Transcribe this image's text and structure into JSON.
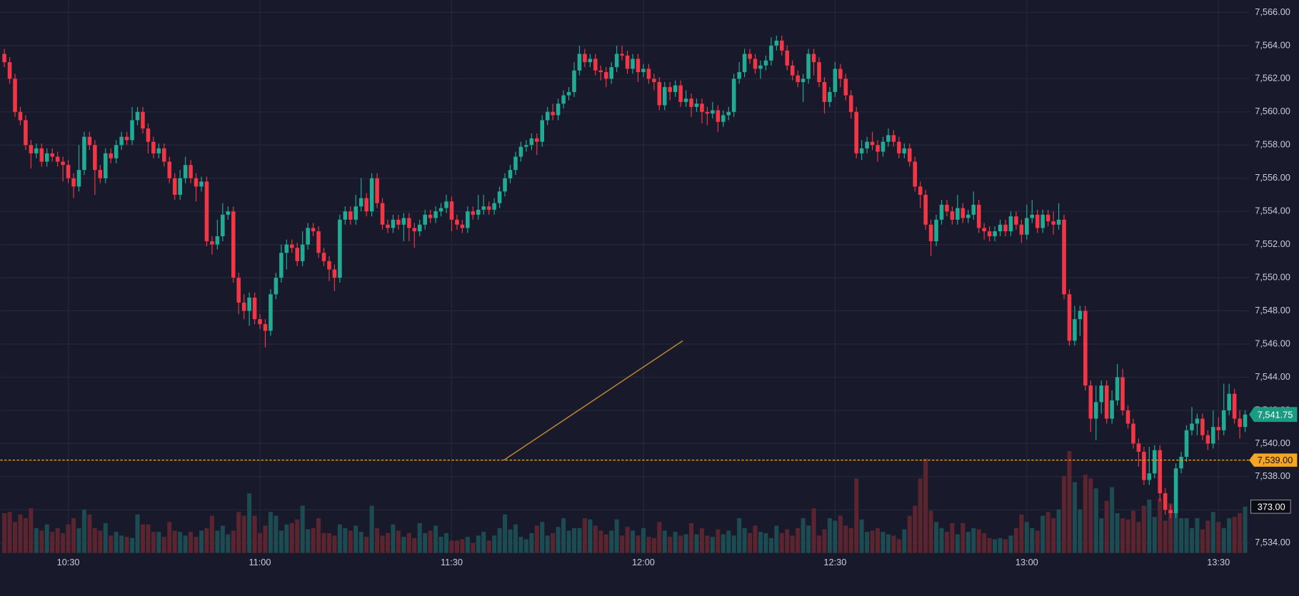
{
  "chart_data": {
    "type": "candlestick",
    "up_color": "#22ab94",
    "down_color": "#f23645",
    "volume_up_color": "#1d4b52",
    "volume_down_color": "#5b2530",
    "grid": true,
    "xlim": [
      -0.78,
      233.75
    ],
    "ylim": [
      7533.4,
      7566.75
    ],
    "vlim": [
      0,
      1000
    ],
    "xticks": [
      {
        "value": 12,
        "label": "10:30"
      },
      {
        "value": 48,
        "label": "11:00"
      },
      {
        "value": 84,
        "label": "11:30"
      },
      {
        "value": 120,
        "label": "12:00"
      },
      {
        "value": 156,
        "label": "12:30"
      },
      {
        "value": 192,
        "label": "13:00"
      },
      {
        "value": 228,
        "label": "13:30"
      }
    ],
    "yticks": [
      {
        "value": 7534,
        "label": "7,534.00"
      },
      {
        "value": 7536,
        "label": "7,536.00"
      },
      {
        "value": 7538,
        "label": "7,538.00"
      },
      {
        "value": 7540,
        "label": "7,540.00"
      },
      {
        "value": 7542,
        "label": "7,542.00"
      },
      {
        "value": 7544,
        "label": "7,544.00"
      },
      {
        "value": 7546,
        "label": "7,546.00"
      },
      {
        "value": 7548,
        "label": "7,548.00"
      },
      {
        "value": 7550,
        "label": "7,550.00"
      },
      {
        "value": 7552,
        "label": "7,552.00"
      },
      {
        "value": 7554,
        "label": "7,554.00"
      },
      {
        "value": 7556,
        "label": "7,556.00"
      },
      {
        "value": 7558,
        "label": "7,558.00"
      },
      {
        "value": 7560,
        "label": "7,560.00"
      },
      {
        "value": 7562,
        "label": "7,562.00"
      },
      {
        "value": 7564,
        "label": "7,564.00"
      },
      {
        "value": 7566,
        "label": "7,566.00"
      }
    ],
    "open": [
      7563.5,
      7563,
      7562,
      7560,
      7559.5,
      7558,
      7557.5,
      7557.8,
      7557,
      7557.5,
      7557.3,
      7557,
      7556.8,
      7556,
      7555.5,
      7556.5,
      7558.5,
      7558,
      7556.5,
      7556,
      7557.5,
      7557.2,
      7558,
      7558.5,
      7558.3,
      7559.5,
      7560,
      7559,
      7558.2,
      7557.5,
      7557.8,
      7557,
      7556,
      7555,
      7556,
      7556.8,
      7556,
      7555.5,
      7555.8,
      7552.2,
      7552,
      7552.5,
      7553.8,
      7554,
      7550,
      7548.5,
      7548,
      7548.8,
      7547.5,
      7547.2,
      7546.8,
      7549,
      7550,
      7551.5,
      7552,
      7551.8,
      7551,
      7552,
      7553,
      7552.8,
      7551.5,
      7551,
      7550.5,
      7550,
      7553.5,
      7554,
      7553.5,
      7554.3,
      7554.8,
      7554,
      7556,
      7554.5,
      7553.2,
      7553,
      7553.5,
      7553.2,
      7553.6,
      7553,
      7552.8,
      7553.2,
      7553.8,
      7553.6,
      7554,
      7554.2,
      7554.6,
      7553.5,
      7553.2,
      7553,
      7554,
      7553.8,
      7554.1,
      7554.3,
      7554.1,
      7554.5,
      7555.2,
      7556,
      7556.5,
      7557.3,
      7557.9,
      7558,
      7558.4,
      7558.2,
      7559.5,
      7560,
      7559.8,
      7560.5,
      7561,
      7561.2,
      7562.5,
      7563.5,
      7563,
      7563.2,
      7562.5,
      7562.4,
      7562,
      7562.7,
      7563.5,
      7563.4,
      7562.6,
      7563.2,
      7562.4,
      7562.6,
      7562,
      7561.8,
      7560.4,
      7561.5,
      7561.2,
      7561.6,
      7560.6,
      7560.8,
      7560.3,
      7560.5,
      7560,
      7559.9,
      7560.1,
      7559.4,
      7559.8,
      7560,
      7562,
      7562.4,
      7563.5,
      7563.2,
      7562.6,
      7562.8,
      7563.1,
      7564,
      7564.3,
      7563.7,
      7562.8,
      7562.2,
      7561.8,
      7562,
      7563.5,
      7563,
      7561.8,
      7560.6,
      7561.2,
      7562.6,
      7562,
      7561,
      7560,
      7557.5,
      7557.8,
      7558.2,
      7558,
      7557.6,
      7558.2,
      7558.6,
      7558.2,
      7557.5,
      7557.8,
      7557,
      7555.5,
      7555,
      7553.2,
      7552.2,
      7553.5,
      7554.4,
      7554,
      7553.5,
      7554.2,
      7553.6,
      7553.8,
      7554.4,
      7553,
      7552.8,
      7552.5,
      7552.8,
      7553.2,
      7552.8,
      7553.7,
      7553.2,
      7552.6,
      7553.6,
      7553.8,
      7553,
      7553.8,
      7553.4,
      7553.2,
      7553.5,
      7549,
      7546.2,
      7547.5,
      7548,
      7543.5,
      7541.5,
      7542.5,
      7543.5,
      7541.5,
      7542.6,
      7544,
      7542,
      7541.2,
      7540,
      7539.5,
      7537.8,
      7538.2,
      7539.6,
      7537,
      7536,
      7535.8,
      7538.5,
      7539.2,
      7540.8,
      7541.2,
      7541.5,
      7540.5,
      7540,
      7541,
      7540.8,
      7542,
      7543,
      7541.5,
      7541
    ],
    "high": [
      7563.8,
      7563.3,
      7562.3,
      7560.3,
      7559.8,
      7558.3,
      7558.1,
      7558.1,
      7557.8,
      7557.8,
      7557.6,
      7557.3,
      7557.1,
      7556.3,
      7558,
      7558.8,
      7558.8,
      7558.3,
      7556.8,
      7557.8,
      7557.8,
      7558.3,
      7558.8,
      7558.8,
      7560.3,
      7560.3,
      7560.3,
      7559.3,
      7558.5,
      7558.1,
      7558.1,
      7557.3,
      7556.3,
      7556.5,
      7557.3,
      7557.1,
      7556.3,
      7556.1,
      7556.1,
      7552.5,
      7553.5,
      7554.5,
      7554.3,
      7554.3,
      7550.3,
      7549,
      7549.1,
      7549.1,
      7547.8,
      7547.5,
      7549.3,
      7550.3,
      7552,
      7552.3,
      7552.3,
      7552.1,
      7552.8,
      7553.3,
      7553.3,
      7553.1,
      7551.8,
      7551.3,
      7550.8,
      7553.8,
      7554.3,
      7554.3,
      7555,
      7556,
      7555.1,
      7556.3,
      7556.3,
      7554.8,
      7553.5,
      7553.8,
      7553.8,
      7553.9,
      7553.9,
      7553.3,
      7553.5,
      7554.1,
      7554.1,
      7554.3,
      7554.5,
      7555,
      7554.9,
      7553.8,
      7553.5,
      7554.3,
      7554.3,
      7555,
      7555,
      7554.6,
      7554.8,
      7555.5,
      7556.3,
      7556.8,
      7557.6,
      7558.2,
      7558.3,
      7558.7,
      7558.7,
      7559.8,
      7560.3,
      7560.5,
      7560.8,
      7561.3,
      7561.5,
      7563,
      7564,
      7563.8,
      7563.5,
      7563.5,
      7562.8,
      7562.7,
      7563,
      7564,
      7564,
      7563.7,
      7563.5,
      7563.5,
      7562.9,
      7562.9,
      7562.3,
      7562.1,
      7561.8,
      7561.8,
      7561.9,
      7561.9,
      7561.3,
      7561.1,
      7560.8,
      7560.8,
      7560.3,
      7560.6,
      7560.4,
      7560.1,
      7560.3,
      7562.3,
      7563,
      7563.8,
      7563.8,
      7563.5,
      7563.1,
      7563.4,
      7564.5,
      7564.6,
      7564.6,
      7564,
      7563.1,
      7562.5,
      7562.3,
      7563.8,
      7563.8,
      7563.3,
      7562.1,
      7561.5,
      7563,
      7562.9,
      7562.3,
      7561.3,
      7560.3,
      7558.3,
      7558.5,
      7558.8,
      7558.3,
      7558.5,
      7559,
      7558.9,
      7558.5,
      7558.1,
      7558.1,
      7557.3,
      7555.8,
      7555.3,
      7553.5,
      7553.8,
      7554.7,
      7554.7,
      7554.3,
      7555,
      7554.5,
      7554.1,
      7555.2,
      7554.7,
      7553.3,
      7553.1,
      7553.1,
      7553.5,
      7553.5,
      7554,
      7554,
      7553.5,
      7554.4,
      7554.7,
      7554.1,
      7554.1,
      7554.1,
      7554,
      7554.5,
      7553.8,
      7549.3,
      7548.3,
      7548.3,
      7548.3,
      7543.8,
      7543.5,
      7543.8,
      7543.8,
      7543.2,
      7544.8,
      7544.5,
      7542.3,
      7541.5,
      7540.3,
      7539.8,
      7539.8,
      7539.9,
      7539.9,
      7537.3,
      7536.3,
      7538.8,
      7539.5,
      7541.1,
      7542.2,
      7541.8,
      7541.8,
      7540.8,
      7542,
      7541.6,
      7543.6,
      7543.6,
      7543.3,
      7542,
      7542
    ],
    "low": [
      7562.7,
      7561.7,
      7559.7,
      7559.2,
      7557.7,
      7556.6,
      7557.2,
      7556.7,
      7556.7,
      7557,
      7556.7,
      7555.8,
      7555.7,
      7554.8,
      7555.2,
      7556.2,
      7557.7,
      7555,
      7555.7,
      7555.7,
      7556.9,
      7556.9,
      7557.7,
      7558,
      7558,
      7559.2,
      7558.7,
      7557.5,
      7557.2,
      7557.2,
      7556.7,
      7555.7,
      7554.7,
      7554.7,
      7555.7,
      7555.7,
      7554.6,
      7555.2,
      7551.9,
      7551.4,
      7551.7,
      7552.2,
      7553.5,
      7549.7,
      7547.8,
      7547.5,
      7547.1,
      7547.2,
      7546.9,
      7545.8,
      7546.5,
      7548.7,
      7549.7,
      7550.5,
      7551.5,
      7550.7,
      7550.7,
      7551.7,
      7552.5,
      7551.2,
      7550.7,
      7549.8,
      7549.2,
      7549.7,
      7553.2,
      7553.2,
      7553.2,
      7554,
      7553.7,
      7553.7,
      7554.2,
      7552.9,
      7552.7,
      7552.7,
      7552.9,
      7552.2,
      7552.2,
      7551.8,
      7552.5,
      7552.9,
      7553.3,
      7553.3,
      7553.7,
      7553.9,
      7552.8,
      7552.9,
      7552.7,
      7552.7,
      7553.5,
      7553.5,
      7553.8,
      7553.8,
      7553.8,
      7554.2,
      7554.9,
      7555.7,
      7556.2,
      7557,
      7557.6,
      7557.7,
      7557.4,
      7557.9,
      7559.2,
      7559.5,
      7559.5,
      7560.2,
      7560.7,
      7560.9,
      7562.2,
      7562.7,
      7562.7,
      7562.2,
      7561.9,
      7561.5,
      7561.7,
      7562.4,
      7563.1,
      7562.3,
      7562.3,
      7561.8,
      7562.1,
      7561.7,
      7561.3,
      7560.1,
      7560.1,
      7560.7,
      7560.9,
      7560.3,
      7560.3,
      7559.7,
      7560,
      7559.3,
      7559.2,
      7559.6,
      7558.8,
      7559.1,
      7559.5,
      7559.7,
      7561.7,
      7562.1,
      7562.9,
      7562.3,
      7562,
      7562.5,
      7562.8,
      7563.7,
      7563.4,
      7562.5,
      7561.9,
      7561.5,
      7560.6,
      7561.7,
      7562.2,
      7561.5,
      7559.9,
      7560.3,
      7560.9,
      7561.5,
      7560.7,
      7559.6,
      7557.2,
      7557.1,
      7557.5,
      7557.7,
      7557,
      7557.3,
      7557.9,
      7557.9,
      7557.2,
      7557.2,
      7556.7,
      7555.2,
      7554.2,
      7552.9,
      7551.3,
      7551.9,
      7553.2,
      7553.7,
      7553.2,
      7553.2,
      7553.3,
      7553.3,
      7553.5,
      7552.7,
      7552.3,
      7552.2,
      7552.2,
      7552.5,
      7552.5,
      7552.5,
      7552.9,
      7552.1,
      7552.3,
      7553.3,
      7552.7,
      7552.7,
      7553.1,
      7552.6,
      7552.9,
      7548.7,
      7545.9,
      7545.9,
      7546.5,
      7543.2,
      7540.7,
      7540.2,
      7541.8,
      7541.2,
      7541.2,
      7542.3,
      7541.7,
      7540.9,
      7539.7,
      7538.6,
      7537.5,
      7537.5,
      7537.9,
      7536.5,
      7535.7,
      7535.5,
      7535.5,
      7538.2,
      7538.9,
      7540.5,
      7540.5,
      7540.2,
      7539.6,
      7539.7,
      7540.2,
      7540.5,
      7541.7,
      7541.2,
      7540.3,
      7540.7
    ],
    "close": [
      7563,
      7562,
      7560,
      7559.5,
      7558,
      7557.5,
      7557.8,
      7557,
      7557.5,
      7557.3,
      7557,
      7556.8,
      7556,
      7555.5,
      7556.5,
      7558.5,
      7558,
      7556.5,
      7556,
      7557.5,
      7557.2,
      7558,
      7558.5,
      7558.3,
      7559.5,
      7560,
      7559,
      7558.2,
      7557.5,
      7557.8,
      7557,
      7556,
      7555,
      7556,
      7556.8,
      7556,
      7555.5,
      7555.8,
      7552.2,
      7552,
      7552.5,
      7553.8,
      7554,
      7550,
      7548.5,
      7548,
      7548.8,
      7547.5,
      7547.2,
      7546.8,
      7549,
      7550,
      7551.5,
      7552,
      7551.8,
      7551,
      7552,
      7553,
      7552.8,
      7551.5,
      7551,
      7550.5,
      7550,
      7553.5,
      7554,
      7553.5,
      7554.3,
      7554.8,
      7554,
      7556,
      7554.5,
      7553.2,
      7553,
      7553.5,
      7553.2,
      7553.6,
      7553,
      7552.8,
      7553.2,
      7553.8,
      7553.6,
      7554,
      7554.2,
      7554.6,
      7553.5,
      7553.2,
      7553,
      7554,
      7553.8,
      7554.1,
      7554.3,
      7554.1,
      7554.5,
      7555.2,
      7556,
      7556.5,
      7557.3,
      7557.9,
      7558,
      7558.4,
      7558.2,
      7559.5,
      7560,
      7559.8,
      7560.5,
      7561,
      7561.2,
      7562.5,
      7563.5,
      7563,
      7563.2,
      7562.5,
      7562.4,
      7562,
      7562.7,
      7563.5,
      7563.4,
      7562.6,
      7563.2,
      7562.4,
      7562.6,
      7562,
      7561.8,
      7560.4,
      7561.5,
      7561.2,
      7561.6,
      7560.6,
      7560.8,
      7560.3,
      7560.5,
      7560,
      7559.9,
      7560.1,
      7559.4,
      7559.8,
      7560,
      7562,
      7562.4,
      7563.5,
      7563.2,
      7562.6,
      7562.8,
      7563.1,
      7564,
      7564.3,
      7563.7,
      7562.8,
      7562.2,
      7561.8,
      7562,
      7563.5,
      7563,
      7561.8,
      7560.6,
      7561.2,
      7562.6,
      7562,
      7561,
      7560,
      7557.5,
      7557.8,
      7558.2,
      7558,
      7557.6,
      7558.2,
      7558.6,
      7558.2,
      7557.5,
      7557.8,
      7557,
      7555.5,
      7555,
      7553.2,
      7552.2,
      7553.5,
      7554.4,
      7554,
      7553.5,
      7554.2,
      7553.6,
      7553.8,
      7554.4,
      7553,
      7552.8,
      7552.5,
      7552.8,
      7553.2,
      7552.8,
      7553.7,
      7553.2,
      7552.6,
      7553.6,
      7553.8,
      7553,
      7553.8,
      7553.4,
      7553.2,
      7553.5,
      7549,
      7546.2,
      7547.5,
      7548,
      7543.5,
      7541.5,
      7542.5,
      7543.5,
      7541.5,
      7542.6,
      7544,
      7542,
      7541.2,
      7540,
      7539.5,
      7537.8,
      7538.2,
      7539.6,
      7537,
      7536,
      7535.8,
      7538.5,
      7539.2,
      7540.8,
      7541.2,
      7541.5,
      7540.5,
      7540,
      7541,
      7540.8,
      7542,
      7543,
      7541.5,
      7541,
      7541.75
    ],
    "volume": [
      320,
      330,
      250,
      310,
      280,
      360,
      200,
      180,
      230,
      170,
      200,
      160,
      230,
      280,
      200,
      350,
      310,
      200,
      180,
      240,
      140,
      170,
      140,
      130,
      120,
      310,
      230,
      230,
      170,
      170,
      130,
      250,
      180,
      170,
      140,
      170,
      130,
      180,
      200,
      300,
      180,
      220,
      150,
      180,
      330,
      300,
      480,
      300,
      160,
      220,
      330,
      300,
      180,
      230,
      240,
      270,
      380,
      190,
      200,
      280,
      160,
      160,
      140,
      230,
      200,
      180,
      220,
      170,
      130,
      380,
      200,
      140,
      160,
      230,
      180,
      130,
      160,
      120,
      240,
      160,
      180,
      220,
      130,
      160,
      100,
      100,
      110,
      130,
      80,
      140,
      170,
      100,
      140,
      200,
      310,
      190,
      230,
      130,
      110,
      160,
      220,
      250,
      140,
      160,
      210,
      280,
      180,
      200,
      200,
      280,
      270,
      220,
      180,
      150,
      180,
      270,
      140,
      210,
      180,
      140,
      200,
      130,
      120,
      250,
      180,
      130,
      170,
      140,
      150,
      240,
      150,
      200,
      140,
      130,
      190,
      150,
      180,
      140,
      280,
      200,
      160,
      220,
      170,
      160,
      120,
      220,
      160,
      190,
      140,
      200,
      280,
      220,
      360,
      140,
      190,
      280,
      260,
      300,
      220,
      200,
      600,
      270,
      170,
      180,
      200,
      170,
      150,
      140,
      110,
      190,
      300,
      380,
      600,
      760,
      340,
      250,
      200,
      170,
      240,
      150,
      240,
      170,
      200,
      190,
      160,
      120,
      110,
      120,
      110,
      140,
      200,
      310,
      250,
      200,
      180,
      300,
      330,
      280,
      350,
      620,
      820,
      570,
      350,
      630,
      600,
      520,
      280,
      420,
      530,
      320,
      280,
      270,
      340,
      250,
      380,
      430,
      290,
      440,
      260,
      400,
      330,
      280,
      280,
      200,
      280,
      190,
      260,
      330,
      250,
      200,
      280,
      290,
      320,
      373
    ],
    "trendline": {
      "x": [
        93.8,
        127.4
      ],
      "y": [
        7539,
        7546.2
      ],
      "color": "#b8862f"
    },
    "price_line": {
      "value": 7539,
      "label": "7,539.00",
      "color": "#f5a623"
    },
    "last_price": {
      "value": 7541.75,
      "label": "7,541.75",
      "color": "#1a9c82"
    },
    "last_volume": {
      "value": 373,
      "label": "373.00"
    }
  }
}
